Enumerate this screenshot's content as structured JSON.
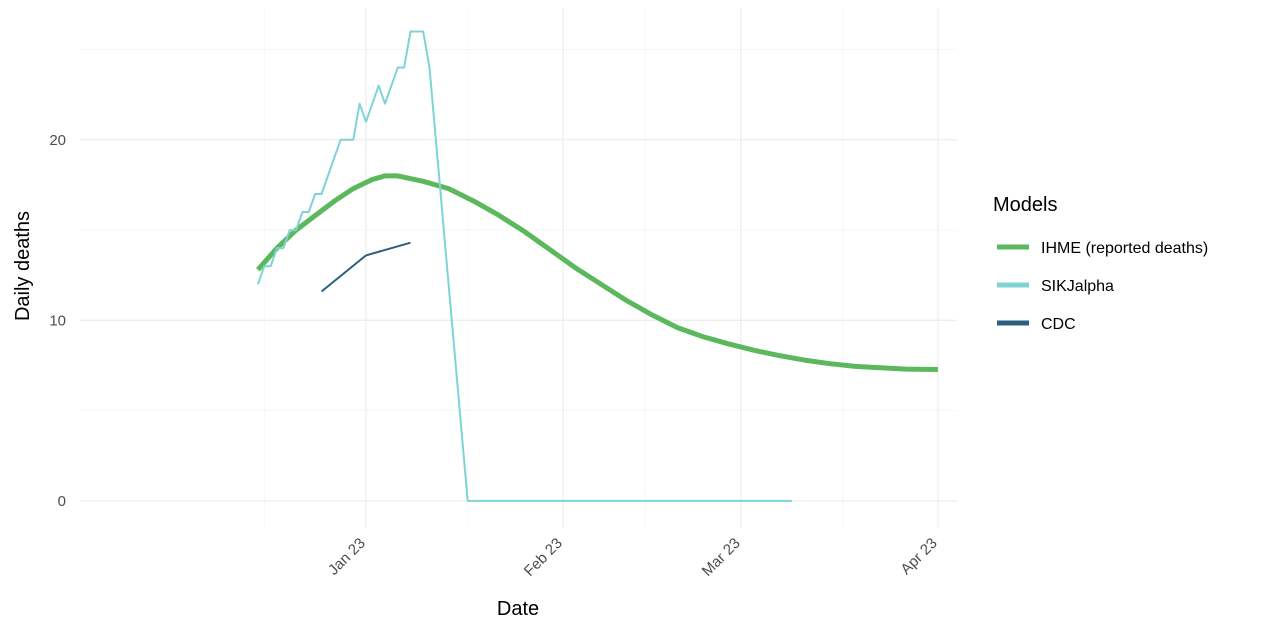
{
  "chart_data": {
    "type": "line",
    "title": "",
    "xlabel": "Date",
    "ylabel": "Daily deaths",
    "x_axis": {
      "type": "date",
      "range": [
        "2020-12-09",
        "2021-04-26"
      ],
      "ticks": [
        {
          "date": "2021-01-23",
          "label": "Jan 23"
        },
        {
          "date": "2021-02-23",
          "label": "Feb 23"
        },
        {
          "date": "2021-03-23",
          "label": "Mar 23"
        },
        {
          "date": "2021-04-23",
          "label": "Apr 23"
        }
      ],
      "minor_ticks": [
        "2021-01-07",
        "2021-02-08",
        "2021-03-08",
        "2021-04-08"
      ],
      "tick_rotation_deg": 45
    },
    "y_axis": {
      "range": [
        -1.5,
        27.3
      ],
      "ticks": [
        {
          "value": 0,
          "label": "0"
        },
        {
          "value": 10,
          "label": "10"
        },
        {
          "value": 20,
          "label": "20"
        }
      ],
      "minor_ticks": [
        5,
        15,
        25
      ]
    },
    "grid": true,
    "legend": {
      "title": "Models",
      "placement": "right",
      "entries": [
        {
          "name": "IHME (reported deaths)",
          "color": "#5cb85c"
        },
        {
          "name": "SIKJalpha",
          "color": "#7fd3d6"
        },
        {
          "name": "CDC",
          "color": "#2b5f7e"
        }
      ]
    },
    "series": [
      {
        "name": "IHME (reported deaths)",
        "color": "#5cb85c",
        "points": [
          [
            "2021-01-06",
            12.8
          ],
          [
            "2021-01-09",
            14.0
          ],
          [
            "2021-01-12",
            15.0
          ],
          [
            "2021-01-15",
            15.8
          ],
          [
            "2021-01-18",
            16.6
          ],
          [
            "2021-01-21",
            17.3
          ],
          [
            "2021-01-24",
            17.8
          ],
          [
            "2021-01-26",
            18.0
          ],
          [
            "2021-01-28",
            18.0
          ],
          [
            "2021-02-01",
            17.7
          ],
          [
            "2021-02-05",
            17.3
          ],
          [
            "2021-02-09",
            16.6
          ],
          [
            "2021-02-13",
            15.8
          ],
          [
            "2021-02-17",
            14.9
          ],
          [
            "2021-02-21",
            13.9
          ],
          [
            "2021-02-25",
            12.9
          ],
          [
            "2021-03-01",
            12.0
          ],
          [
            "2021-03-05",
            11.1
          ],
          [
            "2021-03-09",
            10.3
          ],
          [
            "2021-03-13",
            9.6
          ],
          [
            "2021-03-17",
            9.1
          ],
          [
            "2021-03-21",
            8.7
          ],
          [
            "2021-03-25",
            8.35
          ],
          [
            "2021-03-29",
            8.05
          ],
          [
            "2021-04-02",
            7.8
          ],
          [
            "2021-04-06",
            7.6
          ],
          [
            "2021-04-10",
            7.45
          ],
          [
            "2021-04-14",
            7.37
          ],
          [
            "2021-04-18",
            7.3
          ],
          [
            "2021-04-23",
            7.28
          ]
        ]
      },
      {
        "name": "SIKJalpha",
        "color": "#7fd3d6",
        "points": [
          [
            "2021-01-06",
            12.0
          ],
          [
            "2021-01-07",
            13.0
          ],
          [
            "2021-01-08",
            13.0
          ],
          [
            "2021-01-09",
            14.0
          ],
          [
            "2021-01-10",
            14.0
          ],
          [
            "2021-01-11",
            15.0
          ],
          [
            "2021-01-12",
            15.0
          ],
          [
            "2021-01-13",
            16.0
          ],
          [
            "2021-01-14",
            16.0
          ],
          [
            "2021-01-15",
            17.0
          ],
          [
            "2021-01-16",
            17.0
          ],
          [
            "2021-01-18",
            19.0
          ],
          [
            "2021-01-19",
            20.0
          ],
          [
            "2021-01-20",
            20.0
          ],
          [
            "2021-01-21",
            20.0
          ],
          [
            "2021-01-22",
            22.0
          ],
          [
            "2021-01-23",
            21.0
          ],
          [
            "2021-01-25",
            23.0
          ],
          [
            "2021-01-26",
            22.0
          ],
          [
            "2021-01-28",
            24.0
          ],
          [
            "2021-01-29",
            24.0
          ],
          [
            "2021-01-30",
            26.0
          ],
          [
            "2021-02-01",
            26.0
          ],
          [
            "2021-02-02",
            24.0
          ],
          [
            "2021-02-05",
            12.0
          ],
          [
            "2021-02-08",
            0.0
          ],
          [
            "2021-03-31",
            0.0
          ]
        ]
      },
      {
        "name": "CDC",
        "color": "#2b5f7e",
        "points": [
          [
            "2021-01-16",
            11.6
          ],
          [
            "2021-01-23",
            13.6
          ],
          [
            "2021-01-30",
            14.3
          ]
        ]
      }
    ]
  }
}
